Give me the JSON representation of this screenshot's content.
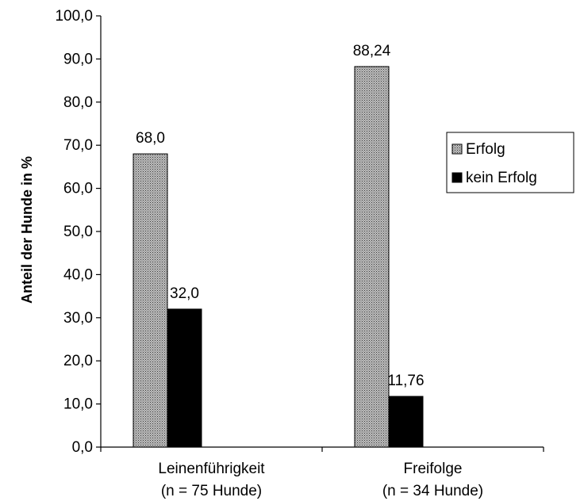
{
  "chart_data": {
    "type": "bar",
    "ylabel": "Anteil der Hunde in %",
    "xlabel": "",
    "title": "",
    "ylim": [
      0,
      100
    ],
    "ytick_step": 10,
    "yticks": [
      "0,0",
      "10,0",
      "20,0",
      "30,0",
      "40,0",
      "50,0",
      "60,0",
      "70,0",
      "80,0",
      "90,0",
      "100,0"
    ],
    "categories": [
      {
        "line1": "Leinenführigkeit",
        "line2": "(n = 75 Hunde)"
      },
      {
        "line1": "Freifolge",
        "line2": "(n = 34 Hunde)"
      }
    ],
    "series": [
      {
        "name": "Erfolg",
        "values": [
          68.0,
          88.24
        ],
        "labels": [
          "68,0",
          "88,24"
        ],
        "color": "#9a9a9a",
        "pattern": "crosshatch"
      },
      {
        "name": "kein Erfolg",
        "values": [
          32.0,
          11.76
        ],
        "labels": [
          "32,0",
          "11,76"
        ],
        "color": "#000000",
        "pattern": "solid"
      }
    ],
    "legend": {
      "position": "right"
    },
    "grid": false
  }
}
